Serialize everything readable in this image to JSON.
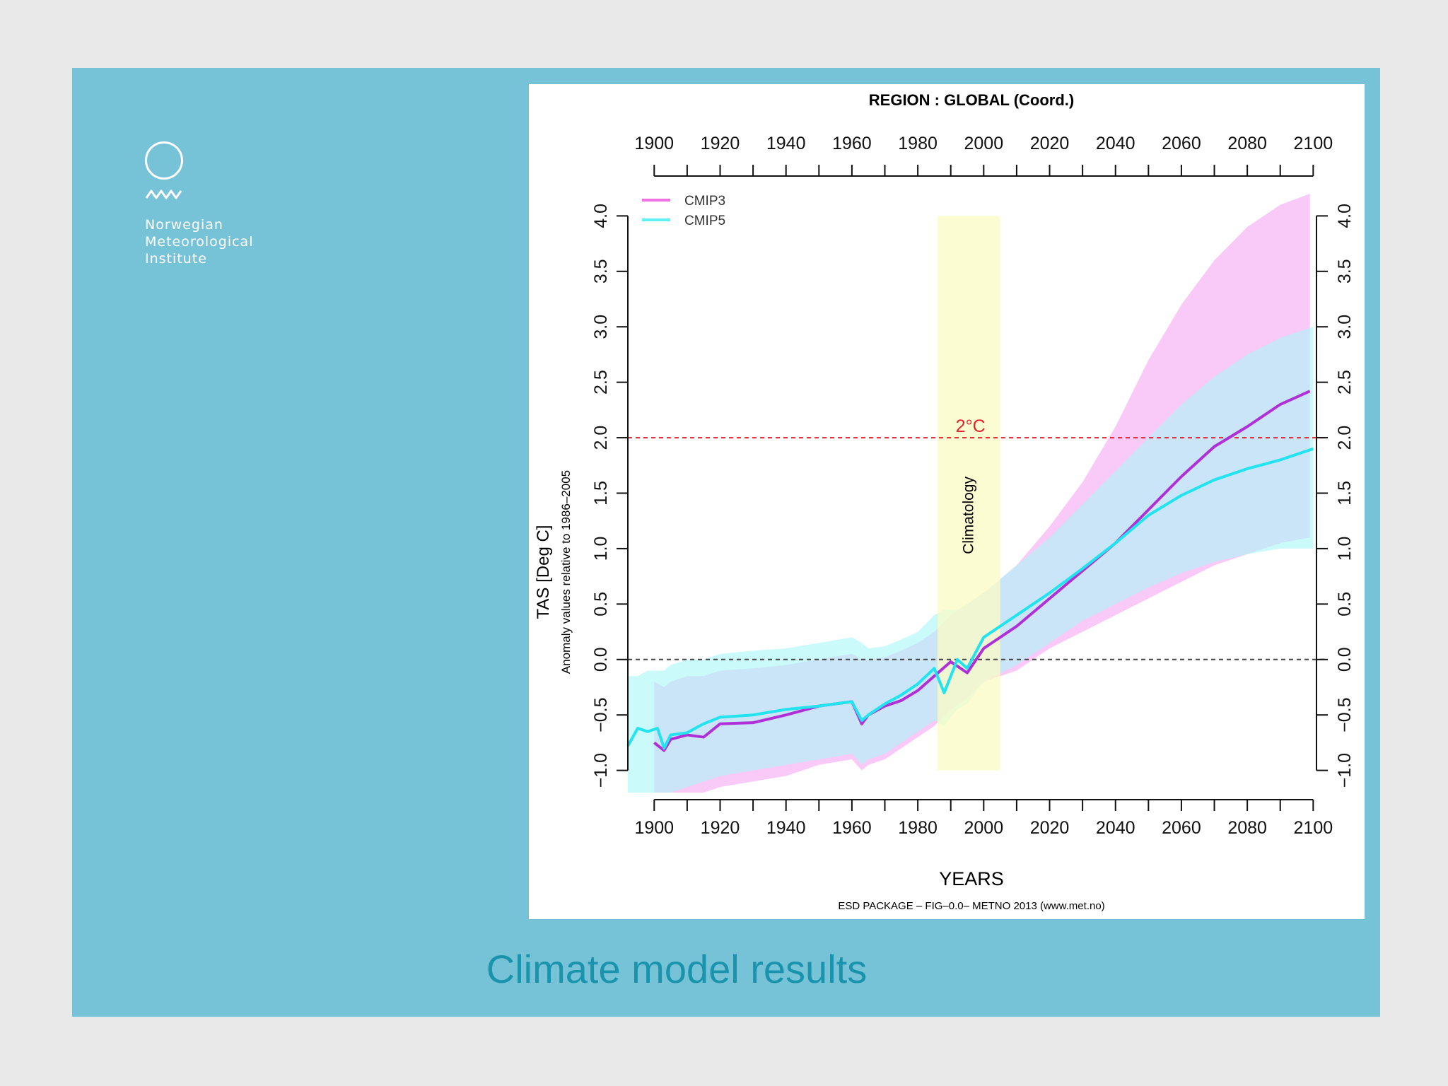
{
  "slide": {
    "title": "Climate model results",
    "background": "#76c3d8",
    "title_color": "#1a93ad"
  },
  "logo": {
    "icon": "met-norway-circle-wave-icon",
    "org_name": "Norwegian\nMeteorological\nInstitute"
  },
  "chart_data": {
    "type": "line",
    "title": "REGION :  GLOBAL (Coord.)",
    "xlabel": "YEARS",
    "ylabel": "TAS [Deg C]",
    "ylabel_sub": "Anomaly values relative to 1986–2005",
    "footer": "ESD PACKAGE – FIG–0.0– METNO 2013 (www.met.no)",
    "xlim": [
      1892,
      2101
    ],
    "ylim": [
      -1.2,
      4.2
    ],
    "x_ticks": [
      1900,
      1920,
      1940,
      1960,
      1980,
      2000,
      2020,
      2040,
      2060,
      2080,
      2100
    ],
    "y_ticks": [
      -1.0,
      -0.5,
      0.0,
      0.5,
      1.0,
      1.5,
      2.0,
      2.5,
      3.0,
      3.5,
      4.0
    ],
    "y_tick_labels": [
      "−1.0",
      "−0.5",
      "0.0",
      "0.5",
      "1.0",
      "1.5",
      "2.0",
      "2.5",
      "3.0",
      "3.5",
      "4.0"
    ],
    "legend_position": "top-left",
    "reference_lines": [
      {
        "y": 2.0,
        "label": "2°C",
        "color": "#e8202a"
      },
      {
        "y": 0.0,
        "label": "",
        "color": "#444444"
      }
    ],
    "shaded_period": {
      "x_start": 1986,
      "x_end": 2005,
      "label": "Climatology",
      "color": "#fbfbc4"
    },
    "series": [
      {
        "name": "CMIP3",
        "color": "#b030d8",
        "band_color": "#f5a6f3",
        "x": [
          1900,
          1903,
          1905,
          1910,
          1915,
          1920,
          1930,
          1940,
          1950,
          1960,
          1963,
          1965,
          1970,
          1975,
          1980,
          1985,
          1990,
          1995,
          2000,
          2010,
          2020,
          2030,
          2040,
          2050,
          2060,
          2070,
          2080,
          2090,
          2099
        ],
        "values": [
          -0.75,
          -0.82,
          -0.72,
          -0.68,
          -0.7,
          -0.58,
          -0.57,
          -0.5,
          -0.42,
          -0.38,
          -0.58,
          -0.5,
          -0.42,
          -0.37,
          -0.28,
          -0.15,
          -0.02,
          -0.12,
          0.1,
          0.3,
          0.55,
          0.8,
          1.05,
          1.35,
          1.65,
          1.92,
          2.1,
          2.3,
          2.42
        ],
        "band_upper": [
          -0.2,
          -0.25,
          -0.2,
          -0.15,
          -0.15,
          -0.1,
          -0.08,
          -0.05,
          0.0,
          0.05,
          0.0,
          0.0,
          0.02,
          0.08,
          0.15,
          0.25,
          0.4,
          0.5,
          0.6,
          0.85,
          1.2,
          1.6,
          2.1,
          2.7,
          3.2,
          3.6,
          3.9,
          4.1,
          4.2
        ],
        "band_lower": [
          -1.2,
          -1.2,
          -1.2,
          -1.2,
          -1.2,
          -1.15,
          -1.1,
          -1.05,
          -0.95,
          -0.9,
          -1.0,
          -0.95,
          -0.9,
          -0.8,
          -0.7,
          -0.6,
          -0.45,
          -0.35,
          -0.2,
          -0.1,
          0.1,
          0.25,
          0.4,
          0.55,
          0.7,
          0.85,
          0.95,
          1.05,
          1.1
        ]
      },
      {
        "name": "CMIP5",
        "color": "#22e3ee",
        "band_color": "#a9f6f6",
        "x": [
          1892,
          1895,
          1898,
          1901,
          1903,
          1905,
          1910,
          1915,
          1920,
          1930,
          1940,
          1950,
          1960,
          1963,
          1965,
          1970,
          1975,
          1980,
          1985,
          1988,
          1992,
          1995,
          2000,
          2010,
          2020,
          2030,
          2040,
          2050,
          2060,
          2070,
          2080,
          2090,
          2100
        ],
        "values": [
          -0.78,
          -0.62,
          -0.65,
          -0.62,
          -0.8,
          -0.68,
          -0.66,
          -0.58,
          -0.52,
          -0.5,
          -0.45,
          -0.42,
          -0.38,
          -0.55,
          -0.5,
          -0.4,
          -0.32,
          -0.22,
          -0.08,
          -0.3,
          0.0,
          -0.08,
          0.2,
          0.4,
          0.6,
          0.82,
          1.05,
          1.3,
          1.48,
          1.62,
          1.72,
          1.8,
          1.9
        ],
        "band_upper": [
          -0.15,
          -0.15,
          -0.1,
          -0.1,
          -0.1,
          -0.05,
          0.0,
          0.0,
          0.05,
          0.08,
          0.1,
          0.15,
          0.2,
          0.15,
          0.1,
          0.12,
          0.18,
          0.25,
          0.4,
          0.45,
          0.45,
          0.5,
          0.6,
          0.85,
          1.1,
          1.4,
          1.7,
          2.0,
          2.3,
          2.55,
          2.75,
          2.9,
          3.0
        ],
        "band_lower": [
          -1.2,
          -1.2,
          -1.2,
          -1.2,
          -1.2,
          -1.2,
          -1.15,
          -1.1,
          -1.05,
          -1.0,
          -0.95,
          -0.9,
          -0.85,
          -0.95,
          -0.9,
          -0.85,
          -0.75,
          -0.65,
          -0.55,
          -0.6,
          -0.45,
          -0.4,
          -0.2,
          -0.05,
          0.15,
          0.35,
          0.5,
          0.65,
          0.78,
          0.88,
          0.95,
          1.0,
          1.0
        ]
      }
    ]
  }
}
